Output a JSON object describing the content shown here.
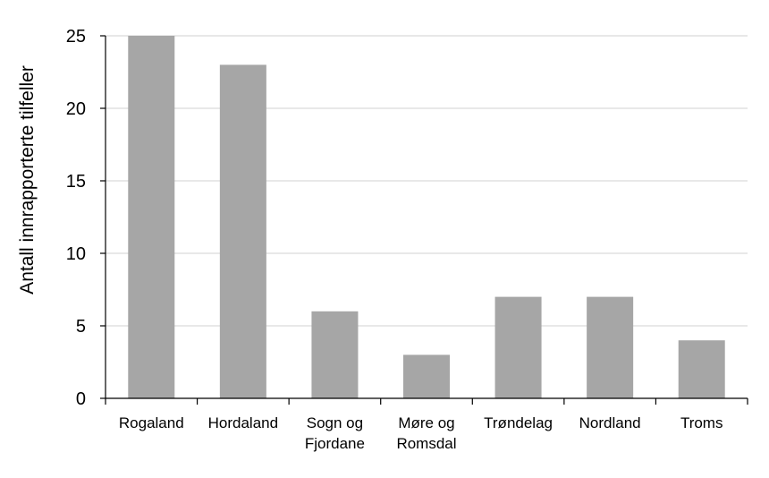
{
  "chart_data": {
    "type": "bar",
    "title": "",
    "xlabel": "",
    "ylabel": "Antall innrapporterte tilfeller",
    "categories": [
      [
        "Rogaland"
      ],
      [
        "Hordaland"
      ],
      [
        "Sogn og",
        "Fjordane"
      ],
      [
        "Møre og",
        "Romsdal"
      ],
      [
        "Trøndelag"
      ],
      [
        "Nordland"
      ],
      [
        "Troms"
      ]
    ],
    "values": [
      25,
      23,
      6,
      3,
      7,
      7,
      4
    ],
    "ylim": [
      0,
      25
    ],
    "yticks": [
      0,
      5,
      10,
      15,
      20,
      25
    ],
    "grid": true,
    "colors": {
      "bar": "#a6a6a6",
      "grid": "#d9d9d9",
      "axis": "#000000"
    }
  }
}
